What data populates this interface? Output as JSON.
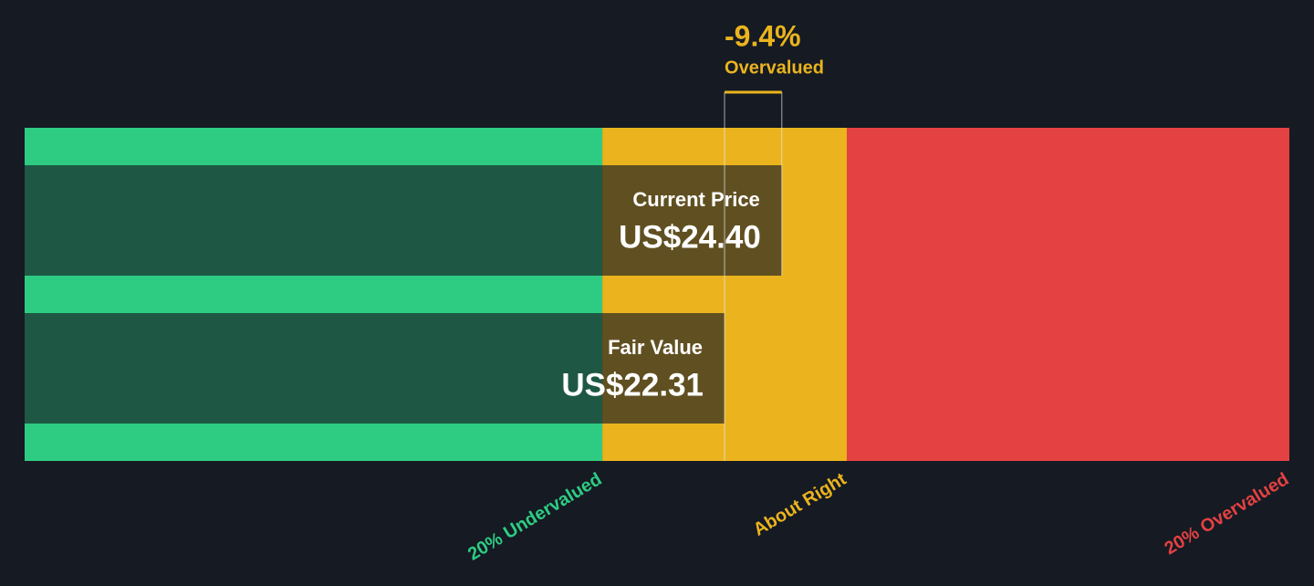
{
  "chart_data": {
    "type": "valuation",
    "xlim": [
      -3.23,
      42.92
    ],
    "zones": [
      {
        "name": "20% Undervalued",
        "end": 17.85,
        "color": "#2ecc82"
      },
      {
        "name": "About Right",
        "end": 26.77,
        "color": "#ebb41e"
      },
      {
        "name": "20% Overvalued",
        "end": 42.92,
        "color": "#e44142"
      }
    ],
    "series": [
      {
        "name": "Current Price",
        "values": [
          24.4
        ],
        "value_labels": [
          "US$24.40"
        ]
      },
      {
        "name": "Fair Value",
        "values": [
          22.31
        ],
        "value_labels": [
          "US$22.31"
        ]
      }
    ],
    "difference": {
      "value": -9.4,
      "label": "-9.4%"
    },
    "verdict": "Overvalued"
  }
}
